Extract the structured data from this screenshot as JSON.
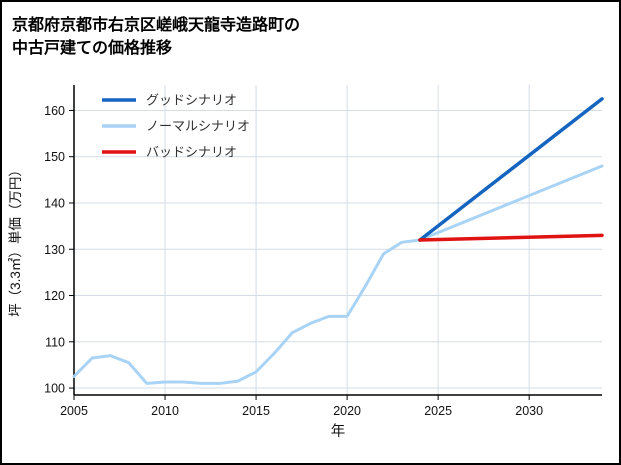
{
  "title": {
    "line1": "京都府京都市右京区嵯峨天龍寺造路町の",
    "line2": "中古戸建ての価格推移"
  },
  "chart_data": {
    "type": "line",
    "title": "京都府京都市右京区嵯峨天龍寺造路町の中古戸建ての価格推移",
    "xlabel": "年",
    "ylabel": "坪（3.3㎡）単価（万円）",
    "xlim": [
      2005,
      2034
    ],
    "ylim": [
      98.5,
      165.5
    ],
    "xticks": [
      2005,
      2010,
      2015,
      2020,
      2025,
      2030
    ],
    "yticks": [
      100,
      110,
      120,
      130,
      140,
      150,
      160
    ],
    "grid": true,
    "grid_color": "#d4dde6",
    "axis_color": "#000000",
    "tick_label_color": "#111111",
    "legend_position": "upper-left",
    "legend_text_color": "#333333",
    "series": [
      {
        "key": "good-scenario",
        "name": "グッドシナリオ",
        "color": "#1565c0",
        "width": 3.5,
        "x": [
          2024,
          2034
        ],
        "y": [
          132,
          162.5
        ]
      },
      {
        "key": "normal-scenario",
        "name": "ノーマルシナリオ",
        "color": "#a9d3f5",
        "width": 3,
        "x": [
          2005,
          2006,
          2007,
          2008,
          2009,
          2010,
          2011,
          2012,
          2013,
          2014,
          2015,
          2016,
          2017,
          2018,
          2019,
          2020,
          2021,
          2022,
          2023,
          2024,
          2034
        ],
        "y": [
          102.5,
          106.5,
          107,
          105.5,
          101,
          101.3,
          101.3,
          101,
          101,
          101.5,
          103.5,
          107.5,
          112,
          114,
          115.5,
          115.5,
          122,
          129,
          131.5,
          132,
          148
        ]
      },
      {
        "key": "bad-scenario",
        "name": "バッドシナリオ",
        "color": "#e01212",
        "width": 3.5,
        "x": [
          2024,
          2034
        ],
        "y": [
          132,
          133
        ]
      }
    ]
  }
}
